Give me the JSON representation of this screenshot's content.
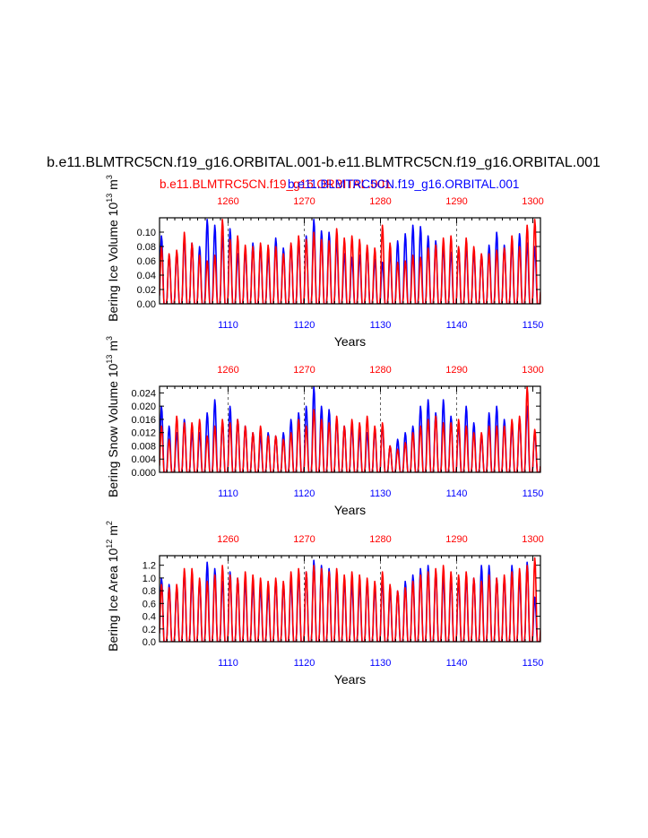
{
  "figure": {
    "main_title": "b.e11.BLMTRC5CN.f19_g16.ORBITAL.001-b.e11.BLMTRC5CN.f19_g16.ORBITAL.001",
    "legend_red": "b.e11.BLMTRC5CN.f19_g16.ORBITAL.001",
    "legend_blue": "b.e11.BLMTRC5CN.f19_g16.ORBITAL.001",
    "colors": {
      "red": "#ff0000",
      "blue": "#0000ff",
      "axis": "#000000"
    }
  },
  "chart_data": [
    {
      "type": "line",
      "id": "ice_volume",
      "ylabel": "Bering Ice Volume 10^13 m^3",
      "ylabel_main": "Bering Ice Volume 10",
      "ylabel_exp1": "13",
      "ylabel_unit": " m",
      "ylabel_exp2": "3",
      "xlabel": "Years",
      "ylim": [
        0,
        0.12
      ],
      "yticks": [
        "0.00",
        "0.02",
        "0.04",
        "0.06",
        "0.08",
        "0.10"
      ],
      "ytick_values": [
        0,
        0.02,
        0.04,
        0.06,
        0.08,
        0.1
      ],
      "x_bottom": {
        "range": [
          1101,
          1151
        ],
        "ticks": [
          "1110",
          "1120",
          "1130",
          "1140",
          "1150"
        ],
        "tick_values": [
          1110,
          1120,
          1130,
          1140,
          1150
        ]
      },
      "x_top": {
        "range": [
          1251,
          1301
        ],
        "ticks": [
          "1260",
          "1270",
          "1280",
          "1290",
          "1300"
        ],
        "tick_values": [
          1260,
          1270,
          1280,
          1290,
          1300
        ]
      },
      "grid_years": [
        1110,
        1120,
        1130,
        1140
      ],
      "series": [
        {
          "name": "blue",
          "peaks": [
            0.095,
            0.068,
            0.072,
            0.092,
            0.085,
            0.08,
            0.118,
            0.11,
            0.095,
            0.105,
            0.07,
            0.075,
            0.085,
            0.08,
            0.07,
            0.092,
            0.078,
            0.082,
            0.088,
            0.095,
            0.118,
            0.102,
            0.1,
            0.088,
            0.07,
            0.065,
            0.068,
            0.078,
            0.062,
            0.058,
            0.072,
            0.088,
            0.098,
            0.11,
            0.108,
            0.095,
            0.088,
            0.08,
            0.072,
            0.078,
            0.08,
            0.072,
            0.068,
            0.082,
            0.1,
            0.082,
            0.085,
            0.098,
            0.085,
            0.08
          ]
        },
        {
          "name": "red",
          "peaks": [
            0.08,
            0.07,
            0.075,
            0.1,
            0.085,
            0.068,
            0.06,
            0.068,
            0.118,
            0.09,
            0.095,
            0.082,
            0.08,
            0.085,
            0.082,
            0.08,
            0.07,
            0.085,
            0.095,
            0.09,
            0.1,
            0.09,
            0.088,
            0.105,
            0.092,
            0.095,
            0.09,
            0.082,
            0.078,
            0.11,
            0.085,
            0.058,
            0.06,
            0.068,
            0.065,
            0.078,
            0.082,
            0.092,
            0.095,
            0.08,
            0.092,
            0.08,
            0.07,
            0.07,
            0.075,
            0.078,
            0.095,
            0.08,
            0.11,
            0.118
          ]
        }
      ]
    },
    {
      "type": "line",
      "id": "snow_volume",
      "ylabel": "Bering Snow Volume 10^13 m^3",
      "ylabel_main": "Bering Snow Volume 10",
      "ylabel_exp1": "13",
      "ylabel_unit": " m",
      "ylabel_exp2": "3",
      "xlabel": "Years",
      "ylim": [
        0,
        0.026
      ],
      "yticks": [
        "0.000",
        "0.004",
        "0.008",
        "0.012",
        "0.016",
        "0.020",
        "0.024"
      ],
      "ytick_values": [
        0,
        0.004,
        0.008,
        0.012,
        0.016,
        0.02,
        0.024
      ],
      "x_bottom": {
        "range": [
          1101,
          1151
        ],
        "ticks": [
          "1110",
          "1120",
          "1130",
          "1140",
          "1150"
        ],
        "tick_values": [
          1110,
          1120,
          1130,
          1140,
          1150
        ]
      },
      "x_top": {
        "range": [
          1251,
          1301
        ],
        "ticks": [
          "1260",
          "1270",
          "1280",
          "1290",
          "1300"
        ],
        "tick_values": [
          1260,
          1270,
          1280,
          1290,
          1300
        ]
      },
      "grid_years": [
        1110,
        1120,
        1130,
        1140
      ],
      "series": [
        {
          "name": "blue",
          "peaks": [
            0.02,
            0.014,
            0.012,
            0.016,
            0.012,
            0.012,
            0.018,
            0.022,
            0.015,
            0.02,
            0.016,
            0.014,
            0.012,
            0.011,
            0.012,
            0.011,
            0.012,
            0.016,
            0.018,
            0.02,
            0.026,
            0.02,
            0.019,
            0.016,
            0.014,
            0.014,
            0.012,
            0.012,
            0.013,
            0.014,
            0.008,
            0.01,
            0.012,
            0.014,
            0.02,
            0.022,
            0.018,
            0.022,
            0.017,
            0.014,
            0.02,
            0.015,
            0.011,
            0.018,
            0.02,
            0.016,
            0.014,
            0.016,
            0.02,
            0.012
          ]
        },
        {
          "name": "red",
          "peaks": [
            0.014,
            0.01,
            0.017,
            0.015,
            0.015,
            0.016,
            0.011,
            0.014,
            0.016,
            0.015,
            0.016,
            0.014,
            0.012,
            0.014,
            0.011,
            0.011,
            0.01,
            0.012,
            0.016,
            0.014,
            0.019,
            0.016,
            0.015,
            0.017,
            0.014,
            0.016,
            0.015,
            0.017,
            0.014,
            0.015,
            0.008,
            0.007,
            0.009,
            0.012,
            0.014,
            0.016,
            0.017,
            0.015,
            0.015,
            0.016,
            0.014,
            0.012,
            0.012,
            0.014,
            0.014,
            0.014,
            0.016,
            0.017,
            0.026,
            0.013
          ]
        }
      ]
    },
    {
      "type": "line",
      "id": "ice_area",
      "ylabel": "Bering Ice Area 10^12 m^2",
      "ylabel_main": "Bering Ice Area 10",
      "ylabel_exp1": "12",
      "ylabel_unit": " m",
      "ylabel_exp2": "2",
      "xlabel": "Years",
      "ylim": [
        0,
        1.35
      ],
      "yticks": [
        "0.0",
        "0.2",
        "0.4",
        "0.6",
        "0.8",
        "1.0",
        "1.2"
      ],
      "ytick_values": [
        0,
        0.2,
        0.4,
        0.6,
        0.8,
        1.0,
        1.2
      ],
      "x_bottom": {
        "range": [
          1101,
          1151
        ],
        "ticks": [
          "1110",
          "1120",
          "1130",
          "1140",
          "1150"
        ],
        "tick_values": [
          1110,
          1120,
          1130,
          1140,
          1150
        ]
      },
      "x_top": {
        "range": [
          1251,
          1301
        ],
        "ticks": [
          "1260",
          "1270",
          "1280",
          "1290",
          "1300"
        ],
        "tick_values": [
          1260,
          1270,
          1280,
          1290,
          1300
        ]
      },
      "grid_years": [
        1110,
        1120,
        1130,
        1140
      ],
      "series": [
        {
          "name": "blue",
          "peaks": [
            1.0,
            0.9,
            0.85,
            1.1,
            1.0,
            0.95,
            1.25,
            1.15,
            0.95,
            1.1,
            1.0,
            0.95,
            0.9,
            0.85,
            0.8,
            0.95,
            0.9,
            0.95,
            1.05,
            1.1,
            1.28,
            1.2,
            1.15,
            1.0,
            0.95,
            0.9,
            0.9,
            0.95,
            0.85,
            0.95,
            0.8,
            0.8,
            0.95,
            1.05,
            1.15,
            1.2,
            1.1,
            1.0,
            1.0,
            0.95,
            1.0,
            1.0,
            1.2,
            1.2,
            1.0,
            1.0,
            1.2,
            1.0,
            1.25,
            0.7
          ]
        },
        {
          "name": "red",
          "peaks": [
            0.9,
            0.85,
            0.9,
            1.15,
            1.15,
            1.0,
            0.95,
            1.05,
            1.2,
            1.05,
            1.0,
            1.1,
            1.05,
            1.0,
            0.95,
            1.0,
            0.95,
            1.1,
            1.15,
            1.1,
            1.2,
            1.15,
            1.1,
            1.15,
            1.05,
            1.1,
            1.05,
            1.0,
            0.95,
            1.1,
            0.9,
            0.8,
            0.85,
            0.95,
            1.05,
            1.1,
            1.15,
            1.2,
            1.1,
            1.05,
            1.1,
            1.0,
            0.95,
            1.05,
            1.0,
            1.05,
            1.1,
            1.15,
            1.2,
            1.32
          ]
        }
      ]
    }
  ]
}
